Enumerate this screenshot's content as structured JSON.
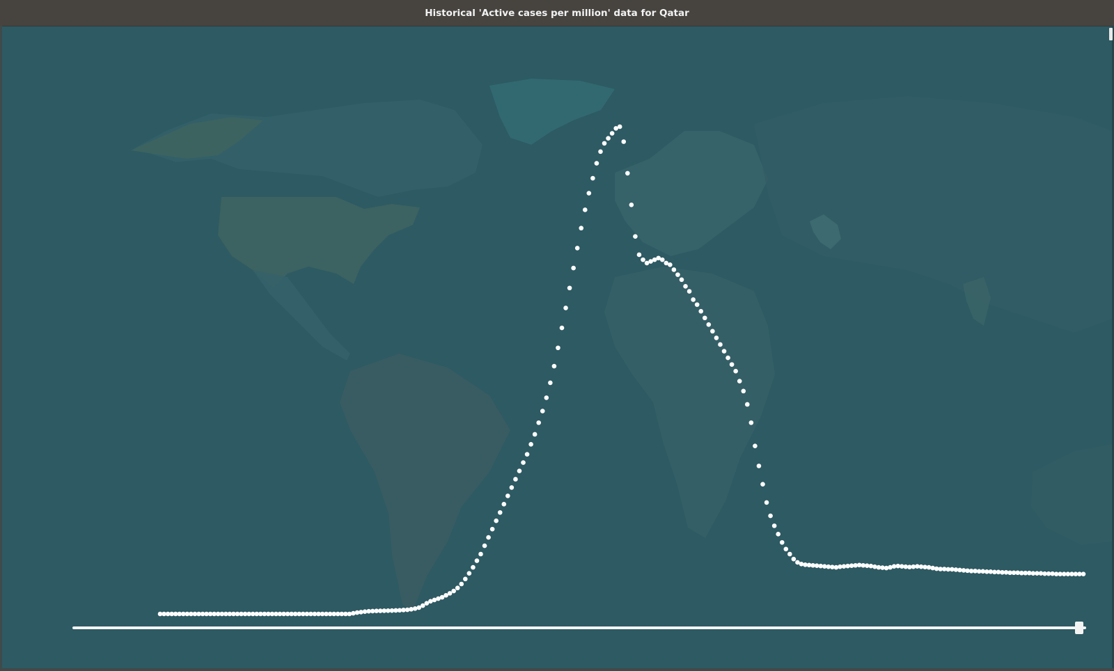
{
  "window": {
    "title": "Historical 'Active cases per million' data for Qatar"
  },
  "colors": {
    "background": "#2d5a63",
    "titlebar": "#474440",
    "land": "#3a6866",
    "greenland": "#336a72",
    "usa": "#3d6361",
    "points": "#ffffff"
  },
  "timeline": {
    "position": 1.0
  },
  "chart_data": {
    "type": "scatter",
    "title": "Historical 'Active cases per million' data for Qatar",
    "xlabel": "",
    "ylabel": "",
    "grid": false,
    "x_count": 240,
    "values": [
      0,
      0,
      0,
      0,
      0,
      0,
      0,
      0,
      0,
      0,
      0,
      0,
      0,
      0,
      0,
      0,
      0,
      0,
      0,
      0,
      0,
      0,
      0,
      0,
      0,
      0,
      0,
      0,
      0,
      0,
      0,
      0,
      0,
      0,
      0,
      0,
      0,
      0,
      0,
      0,
      0,
      0,
      0,
      0,
      0,
      0,
      0,
      0,
      0,
      0,
      20,
      40,
      55,
      70,
      80,
      85,
      90,
      92,
      95,
      98,
      100,
      105,
      110,
      118,
      125,
      140,
      160,
      190,
      250,
      320,
      380,
      420,
      460,
      500,
      560,
      620,
      690,
      780,
      900,
      1050,
      1220,
      1400,
      1600,
      1800,
      2050,
      2300,
      2550,
      2800,
      3050,
      3300,
      3550,
      3800,
      4050,
      4300,
      4550,
      4800,
      5100,
      5400,
      5750,
      6100,
      6500,
      6950,
      7450,
      8000,
      8600,
      9200,
      9800,
      10400,
      11000,
      11600,
      12150,
      12650,
      13100,
      13550,
      13900,
      14150,
      14300,
      14450,
      14600,
      14650,
      14200,
      13250,
      12300,
      11350,
      10800,
      10650,
      10550,
      10600,
      10650,
      10700,
      10650,
      10550,
      10500,
      10350,
      10200,
      10050,
      9850,
      9700,
      9450,
      9300,
      9100,
      8900,
      8700,
      8500,
      8300,
      8100,
      7900,
      7700,
      7500,
      7300,
      7000,
      6700,
      6300,
      5750,
      5050,
      4450,
      3900,
      3350,
      2950,
      2650,
      2400,
      2150,
      1950,
      1800,
      1650,
      1550,
      1500,
      1480,
      1470,
      1460,
      1450,
      1440,
      1430,
      1420,
      1410,
      1400,
      1420,
      1430,
      1440,
      1450,
      1460,
      1470,
      1460,
      1450,
      1440,
      1420,
      1400,
      1390,
      1380,
      1400,
      1430,
      1440,
      1430,
      1420,
      1410,
      1420,
      1430,
      1420,
      1410,
      1400,
      1380,
      1360,
      1350,
      1350,
      1340,
      1340,
      1330,
      1320,
      1310,
      1300,
      1290,
      1290,
      1280,
      1280,
      1270,
      1270,
      1260,
      1260,
      1250,
      1250,
      1240,
      1240,
      1240,
      1230,
      1230,
      1230,
      1220,
      1220,
      1220,
      1210,
      1210,
      1210,
      1200,
      1200,
      1200,
      1200,
      1200,
      1200,
      1200,
      1200
    ]
  }
}
